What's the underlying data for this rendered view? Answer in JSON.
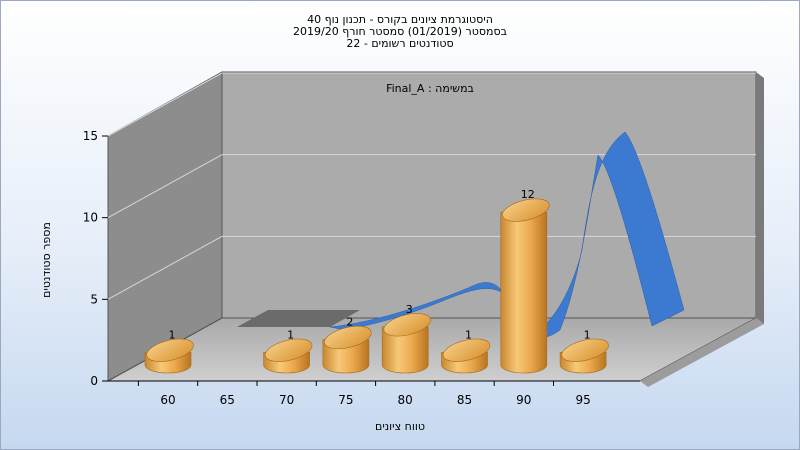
{
  "chart_data": {
    "type": "bar",
    "title": [
      "היסטוגרמת ציונים בקורס - תכנון נוף 40",
      "בסמסטר  (01/2019)  סמסטר חורף 2019/20",
      "סטודנטים רשומים - 22"
    ],
    "subtitle": "במשימה : Final_A",
    "xlabel": "טווח ציונים",
    "ylabel": "מספר סטודנטים",
    "x_ticks": [
      "60",
      "65",
      "70",
      "75",
      "80",
      "85",
      "90",
      "95"
    ],
    "y_ticks": [
      "0",
      "5",
      "10",
      "15"
    ],
    "ylim": [
      0,
      15
    ],
    "bars": [
      {
        "category": "60",
        "value": 1,
        "label": "1"
      },
      {
        "category": "70",
        "value": 1,
        "label": "1"
      },
      {
        "category": "75",
        "value": 2,
        "label": "2"
      },
      {
        "category": "80",
        "value": 3,
        "label": "3"
      },
      {
        "category": "85",
        "value": 1,
        "label": "1"
      },
      {
        "category": "90",
        "value": 12,
        "label": "12"
      },
      {
        "category": "95",
        "value": 1,
        "label": "1"
      }
    ],
    "grid": true,
    "style": "3d",
    "colors": {
      "bar": "#e8a84a",
      "curve": "#3c7fd4",
      "wall": "#a9a9a9",
      "side_wall": "#8a8a8a",
      "floor": "#bdbdbd"
    }
  }
}
